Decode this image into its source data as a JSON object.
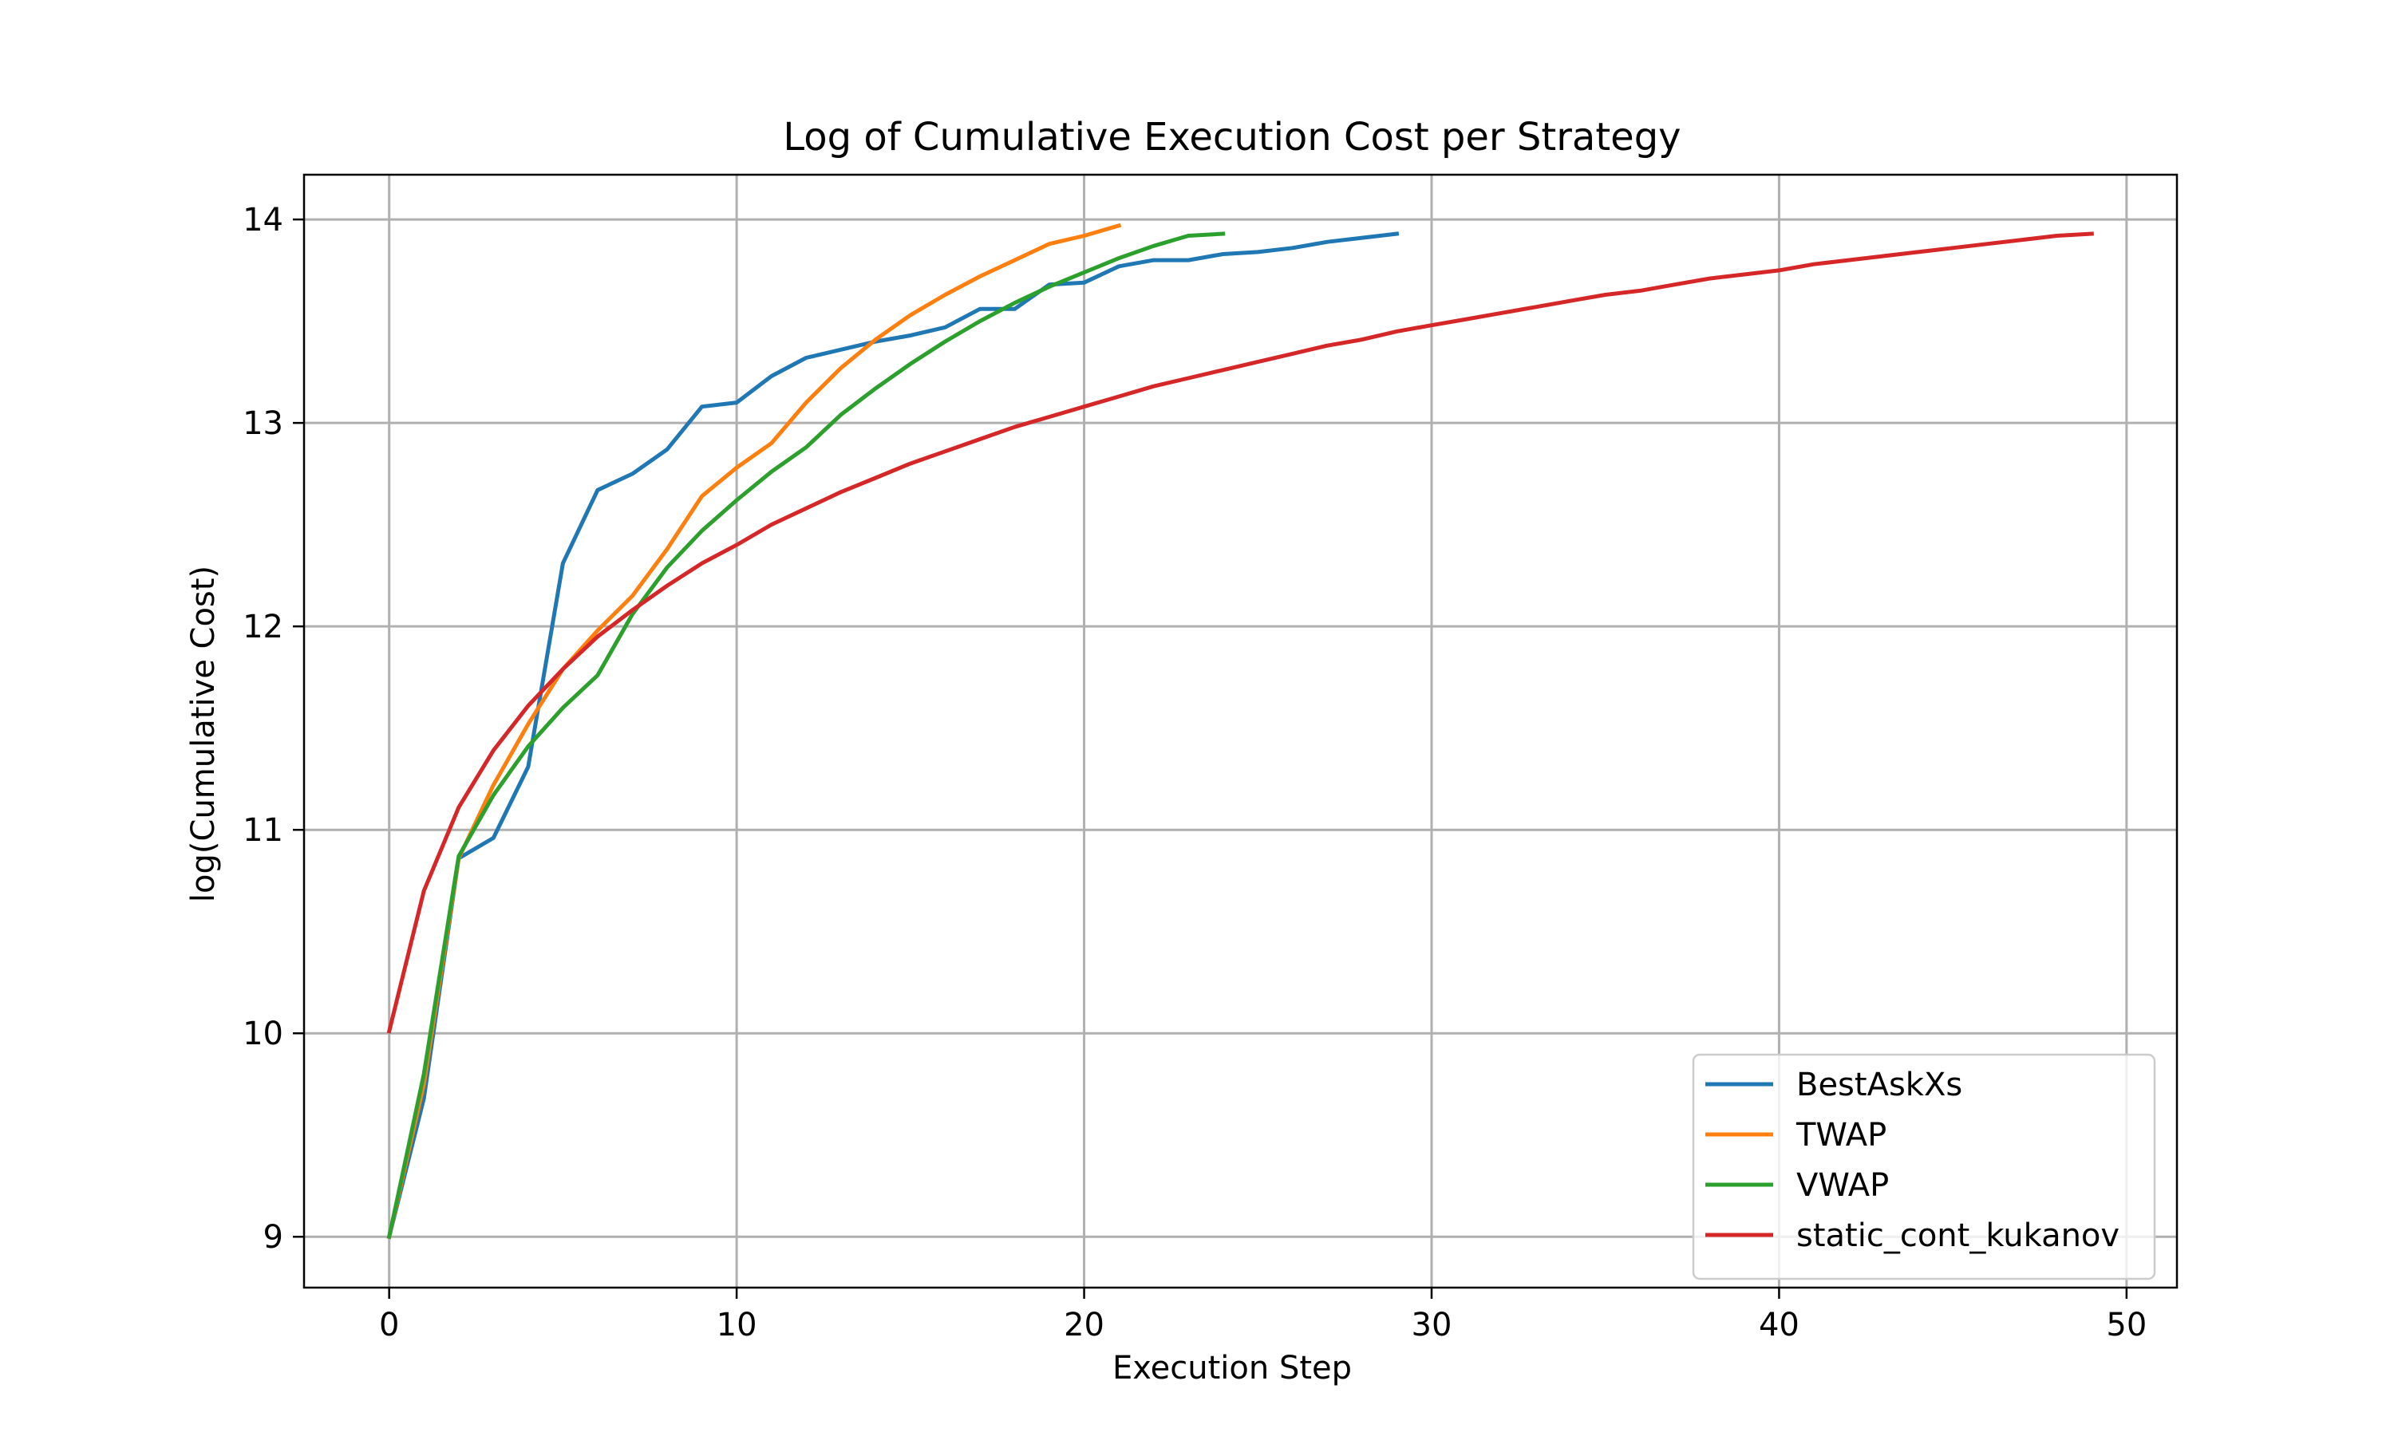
{
  "chart_data": {
    "type": "line",
    "title": "Log of Cumulative Execution Cost per Strategy",
    "xlabel": "Execution Step",
    "ylabel": "log(Cumulative Cost)",
    "xlim": [
      -2.45,
      51.45
    ],
    "ylim": [
      8.75,
      14.22
    ],
    "xticks": [
      0,
      10,
      20,
      30,
      40,
      50
    ],
    "yticks": [
      9,
      10,
      11,
      12,
      13,
      14
    ],
    "grid": true,
    "legend_position": "lower right",
    "series": [
      {
        "name": "BestAskXs",
        "color": "#1f77b4",
        "x": [
          0,
          1,
          2,
          3,
          4,
          5,
          6,
          7,
          8,
          9,
          10,
          11,
          12,
          13,
          14,
          15,
          16,
          17,
          18,
          19,
          20,
          21,
          22,
          23,
          24,
          25,
          26,
          27,
          28,
          29
        ],
        "y": [
          9.0,
          9.68,
          10.86,
          10.96,
          11.31,
          12.31,
          12.67,
          12.75,
          12.87,
          13.08,
          13.1,
          13.23,
          13.32,
          13.36,
          13.4,
          13.43,
          13.47,
          13.56,
          13.56,
          13.68,
          13.69,
          13.77,
          13.8,
          13.8,
          13.83,
          13.84,
          13.86,
          13.89,
          13.91,
          13.93
        ]
      },
      {
        "name": "TWAP",
        "color": "#ff7f0e",
        "x": [
          0,
          1,
          2,
          3,
          4,
          5,
          6,
          7,
          8,
          9,
          10,
          11,
          12,
          13,
          14,
          15,
          16,
          17,
          18,
          19,
          20,
          21
        ],
        "y": [
          9.0,
          9.75,
          10.86,
          11.22,
          11.52,
          11.79,
          11.98,
          12.15,
          12.38,
          12.64,
          12.78,
          12.9,
          13.1,
          13.27,
          13.41,
          13.53,
          13.63,
          13.72,
          13.8,
          13.88,
          13.92,
          13.97
        ]
      },
      {
        "name": "VWAP",
        "color": "#2ca02c",
        "x": [
          0,
          1,
          2,
          3,
          4,
          5,
          6,
          7,
          8,
          9,
          10,
          11,
          12,
          13,
          14,
          15,
          16,
          17,
          18,
          19,
          20,
          21,
          22,
          23,
          24
        ],
        "y": [
          9.0,
          9.8,
          10.87,
          11.17,
          11.41,
          11.6,
          11.76,
          12.06,
          12.29,
          12.47,
          12.62,
          12.76,
          12.88,
          13.04,
          13.17,
          13.29,
          13.4,
          13.5,
          13.59,
          13.67,
          13.74,
          13.81,
          13.87,
          13.92,
          13.93
        ]
      },
      {
        "name": "static_cont_kukanov",
        "color": "#d62728",
        "x": [
          0,
          1,
          2,
          3,
          4,
          5,
          6,
          7,
          8,
          9,
          10,
          11,
          12,
          13,
          14,
          15,
          16,
          17,
          18,
          19,
          20,
          21,
          22,
          23,
          24,
          25,
          26,
          27,
          28,
          29,
          30,
          31,
          32,
          33,
          34,
          35,
          36,
          37,
          38,
          39,
          40,
          41,
          42,
          43,
          44,
          45,
          46,
          47,
          48,
          49
        ],
        "y": [
          10.01,
          10.7,
          11.11,
          11.39,
          11.61,
          11.79,
          11.95,
          12.08,
          12.2,
          12.31,
          12.4,
          12.5,
          12.58,
          12.66,
          12.73,
          12.8,
          12.86,
          12.92,
          12.98,
          13.03,
          13.08,
          13.13,
          13.18,
          13.22,
          13.26,
          13.3,
          13.34,
          13.38,
          13.41,
          13.45,
          13.48,
          13.51,
          13.54,
          13.57,
          13.6,
          13.63,
          13.65,
          13.68,
          13.71,
          13.73,
          13.75,
          13.78,
          13.8,
          13.82,
          13.84,
          13.86,
          13.88,
          13.9,
          13.92,
          13.93
        ]
      }
    ]
  }
}
